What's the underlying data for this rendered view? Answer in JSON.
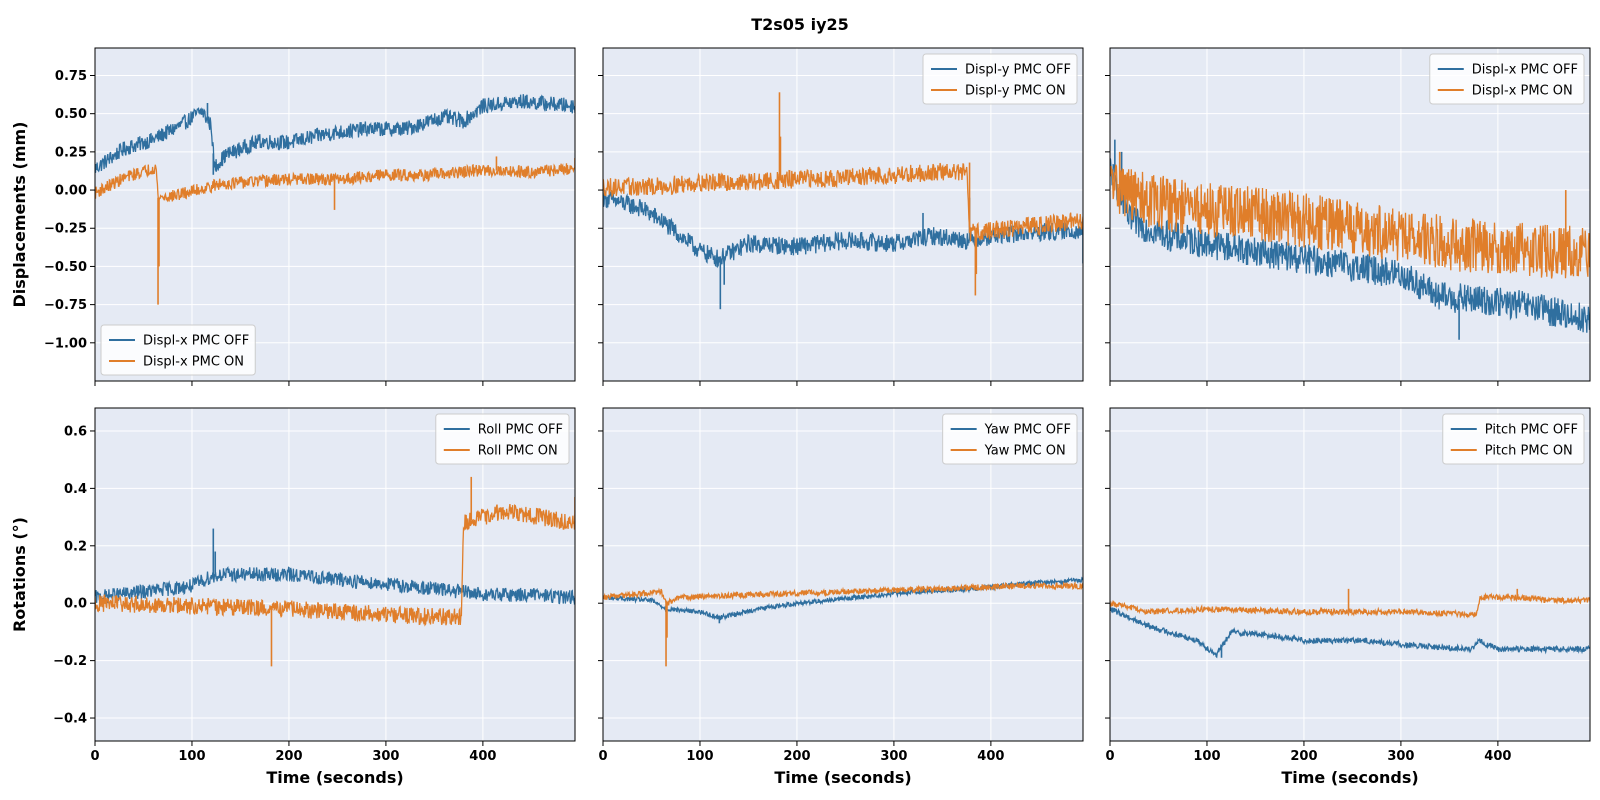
{
  "figure": {
    "title": "T2s05  iy25"
  },
  "colors": {
    "off": "#2f6f9f",
    "on": "#e07e2a",
    "panel_bg": "#e5eaf4",
    "grid": "#ffffff"
  },
  "chart_data": [
    {
      "type": "line",
      "id": "p00",
      "row": 0,
      "col": 0,
      "ylabel": "Displacements (mm)",
      "xlabel": "",
      "xlim": [
        0,
        495
      ],
      "ylim": [
        -1.25,
        0.93
      ],
      "xticks": [
        0,
        100,
        200,
        300,
        400
      ],
      "yticks": [
        0.75,
        0.5,
        0.25,
        0.0,
        -0.25,
        -0.5,
        -0.75,
        -1.0
      ],
      "ytick_labels": [
        "0.75",
        "0.50",
        "0.25",
        "0.00",
        "−0.25",
        "−0.50",
        "−0.75",
        "−1.00"
      ],
      "legend_loc": "lower-left",
      "series": [
        {
          "name": "Displ-x PMC OFF",
          "color": "#2f6f9f",
          "noise": 0.05,
          "points": [
            [
              0,
              0.14
            ],
            [
              30,
              0.27
            ],
            [
              60,
              0.33
            ],
            [
              90,
              0.43
            ],
            [
              110,
              0.52
            ],
            [
              120,
              0.42
            ],
            [
              123,
              0.15
            ],
            [
              135,
              0.23
            ],
            [
              170,
              0.32
            ],
            [
              200,
              0.31
            ],
            [
              240,
              0.37
            ],
            [
              280,
              0.4
            ],
            [
              320,
              0.4
            ],
            [
              360,
              0.48
            ],
            [
              380,
              0.45
            ],
            [
              400,
              0.55
            ],
            [
              440,
              0.58
            ],
            [
              495,
              0.55
            ]
          ],
          "spikes": [
            [
              116,
              0.57
            ],
            [
              125,
              0.12
            ],
            [
              122,
              0.1
            ]
          ]
        },
        {
          "name": "Displ-x PMC ON",
          "color": "#e07e2a",
          "noise": 0.04,
          "points": [
            [
              0,
              -0.02
            ],
            [
              30,
              0.08
            ],
            [
              63,
              0.15
            ],
            [
              65,
              -0.05
            ],
            [
              80,
              -0.04
            ],
            [
              130,
              0.04
            ],
            [
              200,
              0.07
            ],
            [
              250,
              0.07
            ],
            [
              300,
              0.1
            ],
            [
              350,
              0.1
            ],
            [
              400,
              0.13
            ],
            [
              450,
              0.12
            ],
            [
              495,
              0.14
            ]
          ],
          "spikes": [
            [
              65,
              -0.75
            ],
            [
              66,
              -0.5
            ],
            [
              247,
              -0.13
            ],
            [
              414,
              0.22
            ],
            [
              495,
              0.21
            ]
          ]
        }
      ]
    },
    {
      "type": "line",
      "id": "p01",
      "row": 0,
      "col": 1,
      "ylabel": "",
      "xlabel": "",
      "xlim": [
        0,
        495
      ],
      "ylim": [
        -1.25,
        0.93
      ],
      "xticks": [
        0,
        100,
        200,
        300,
        400
      ],
      "yticks": [
        0.75,
        0.5,
        0.25,
        0.0,
        -0.25,
        -0.5,
        -0.75,
        -1.0
      ],
      "ytick_labels": [],
      "legend_loc": "upper-right",
      "series": [
        {
          "name": "Displ-y PMC OFF",
          "color": "#2f6f9f",
          "noise": 0.06,
          "points": [
            [
              0,
              -0.05
            ],
            [
              40,
              -0.12
            ],
            [
              60,
              -0.2
            ],
            [
              80,
              -0.3
            ],
            [
              100,
              -0.4
            ],
            [
              120,
              -0.45
            ],
            [
              150,
              -0.35
            ],
            [
              200,
              -0.37
            ],
            [
              250,
              -0.33
            ],
            [
              300,
              -0.35
            ],
            [
              340,
              -0.3
            ],
            [
              378,
              -0.33
            ],
            [
              400,
              -0.3
            ],
            [
              440,
              -0.28
            ],
            [
              495,
              -0.26
            ]
          ],
          "spikes": [
            [
              121,
              -0.78
            ],
            [
              125,
              -0.62
            ],
            [
              330,
              -0.15
            ],
            [
              378,
              -0.05
            ],
            [
              495,
              -0.48
            ]
          ]
        },
        {
          "name": "Displ-y PMC ON",
          "color": "#e07e2a",
          "noise": 0.06,
          "points": [
            [
              0,
              0.02
            ],
            [
              50,
              0.02
            ],
            [
              100,
              0.05
            ],
            [
              150,
              0.05
            ],
            [
              200,
              0.07
            ],
            [
              250,
              0.08
            ],
            [
              300,
              0.1
            ],
            [
              350,
              0.12
            ],
            [
              375,
              0.12
            ],
            [
              378,
              -0.28
            ],
            [
              420,
              -0.25
            ],
            [
              460,
              -0.22
            ],
            [
              495,
              -0.2
            ]
          ],
          "spikes": [
            [
              182,
              0.64
            ],
            [
              183,
              0.35
            ],
            [
              384,
              -0.69
            ],
            [
              385,
              -0.55
            ],
            [
              378,
              0.18
            ]
          ]
        }
      ]
    },
    {
      "type": "line",
      "id": "p02",
      "row": 0,
      "col": 2,
      "ylabel": "",
      "xlabel": "",
      "xlim": [
        0,
        495
      ],
      "ylim": [
        -1.25,
        0.93
      ],
      "xticks": [
        0,
        100,
        200,
        300,
        400
      ],
      "yticks": [
        0.75,
        0.5,
        0.25,
        0.0,
        -0.25,
        -0.5,
        -0.75,
        -1.0
      ],
      "ytick_labels": [],
      "legend_loc": "upper-right",
      "series": [
        {
          "name": "Displ-x PMC OFF",
          "color": "#2f6f9f",
          "noise": 0.1,
          "points": [
            [
              0,
              0.15
            ],
            [
              20,
              -0.2
            ],
            [
              60,
              -0.3
            ],
            [
              100,
              -0.35
            ],
            [
              150,
              -0.4
            ],
            [
              200,
              -0.45
            ],
            [
              250,
              -0.5
            ],
            [
              300,
              -0.55
            ],
            [
              340,
              -0.7
            ],
            [
              380,
              -0.72
            ],
            [
              420,
              -0.75
            ],
            [
              460,
              -0.8
            ],
            [
              495,
              -0.85
            ]
          ],
          "spikes": [
            [
              5,
              0.33
            ],
            [
              12,
              0.25
            ],
            [
              360,
              -0.98
            ]
          ]
        },
        {
          "name": "Displ-x PMC ON",
          "color": "#e07e2a",
          "noise": 0.18,
          "points": [
            [
              0,
              0.05
            ],
            [
              30,
              -0.05
            ],
            [
              80,
              -0.12
            ],
            [
              150,
              -0.15
            ],
            [
              200,
              -0.2
            ],
            [
              260,
              -0.25
            ],
            [
              300,
              -0.3
            ],
            [
              350,
              -0.35
            ],
            [
              400,
              -0.38
            ],
            [
              450,
              -0.4
            ],
            [
              495,
              -0.42
            ]
          ],
          "spikes": [
            [
              10,
              0.25
            ],
            [
              470,
              0.0
            ]
          ]
        }
      ]
    },
    {
      "type": "line",
      "id": "p10",
      "row": 1,
      "col": 0,
      "ylabel": "Rotations (°)",
      "xlabel": "Time (seconds)",
      "xlim": [
        0,
        495
      ],
      "ylim": [
        -0.48,
        0.68
      ],
      "xticks": [
        0,
        100,
        200,
        300,
        400
      ],
      "xtick_labels": [
        "0",
        "100",
        "200",
        "300",
        "400"
      ],
      "yticks": [
        0.6,
        0.4,
        0.2,
        0.0,
        -0.2,
        -0.4
      ],
      "ytick_labels": [
        "0.6",
        "0.4",
        "0.2",
        "0.0",
        "−0.2",
        "−0.4"
      ],
      "legend_loc": "upper-right",
      "series": [
        {
          "name": "Roll PMC OFF",
          "color": "#2f6f9f",
          "noise": 0.025,
          "points": [
            [
              0,
              0.02
            ],
            [
              50,
              0.04
            ],
            [
              100,
              0.06
            ],
            [
              118,
              0.09
            ],
            [
              130,
              0.1
            ],
            [
              200,
              0.1
            ],
            [
              260,
              0.08
            ],
            [
              320,
              0.06
            ],
            [
              378,
              0.04
            ],
            [
              400,
              0.03
            ],
            [
              450,
              0.03
            ],
            [
              495,
              0.02
            ]
          ],
          "spikes": [
            [
              122,
              0.26
            ],
            [
              124,
              0.18
            ]
          ]
        },
        {
          "name": "Roll PMC ON",
          "color": "#e07e2a",
          "noise": 0.03,
          "points": [
            [
              0,
              0.0
            ],
            [
              100,
              -0.01
            ],
            [
              200,
              -0.02
            ],
            [
              300,
              -0.04
            ],
            [
              378,
              -0.05
            ],
            [
              380,
              0.28
            ],
            [
              420,
              0.32
            ],
            [
              460,
              0.3
            ],
            [
              495,
              0.28
            ]
          ],
          "spikes": [
            [
              182,
              -0.22
            ],
            [
              388,
              0.44
            ],
            [
              495,
              0.37
            ]
          ]
        }
      ]
    },
    {
      "type": "line",
      "id": "p11",
      "row": 1,
      "col": 1,
      "ylabel": "",
      "xlabel": "Time (seconds)",
      "xlim": [
        0,
        495
      ],
      "ylim": [
        -0.48,
        0.68
      ],
      "xticks": [
        0,
        100,
        200,
        300,
        400
      ],
      "xtick_labels": [
        "0",
        "100",
        "200",
        "300",
        "400"
      ],
      "yticks": [
        0.6,
        0.4,
        0.2,
        0.0,
        -0.2,
        -0.4
      ],
      "ytick_labels": [],
      "legend_loc": "upper-right",
      "series": [
        {
          "name": "Yaw PMC OFF",
          "color": "#2f6f9f",
          "noise": 0.008,
          "points": [
            [
              0,
              0.02
            ],
            [
              50,
              0.01
            ],
            [
              65,
              -0.02
            ],
            [
              100,
              -0.03
            ],
            [
              120,
              -0.05
            ],
            [
              160,
              -0.02
            ],
            [
              200,
              0.0
            ],
            [
              260,
              0.02
            ],
            [
              320,
              0.04
            ],
            [
              380,
              0.05
            ],
            [
              440,
              0.07
            ],
            [
              495,
              0.08
            ]
          ],
          "spikes": [
            [
              120,
              -0.07
            ]
          ]
        },
        {
          "name": "Yaw PMC ON",
          "color": "#e07e2a",
          "noise": 0.01,
          "points": [
            [
              0,
              0.02
            ],
            [
              60,
              0.04
            ],
            [
              66,
              0.0
            ],
            [
              80,
              0.02
            ],
            [
              150,
              0.03
            ],
            [
              250,
              0.04
            ],
            [
              350,
              0.05
            ],
            [
              420,
              0.06
            ],
            [
              495,
              0.06
            ]
          ],
          "spikes": [
            [
              65,
              -0.22
            ],
            [
              66,
              -0.12
            ]
          ]
        }
      ]
    },
    {
      "type": "line",
      "id": "p12",
      "row": 1,
      "col": 2,
      "ylabel": "",
      "xlabel": "Time (seconds)",
      "xlim": [
        0,
        495
      ],
      "ylim": [
        -0.48,
        0.68
      ],
      "xticks": [
        0,
        100,
        200,
        300,
        400
      ],
      "xtick_labels": [
        "0",
        "100",
        "200",
        "300",
        "400"
      ],
      "yticks": [
        0.6,
        0.4,
        0.2,
        0.0,
        -0.2,
        -0.4
      ],
      "ytick_labels": [],
      "legend_loc": "upper-right",
      "series": [
        {
          "name": "Pitch PMC OFF",
          "color": "#2f6f9f",
          "noise": 0.01,
          "points": [
            [
              0,
              -0.02
            ],
            [
              20,
              -0.05
            ],
            [
              40,
              -0.08
            ],
            [
              60,
              -0.1
            ],
            [
              90,
              -0.13
            ],
            [
              110,
              -0.18
            ],
            [
              125,
              -0.1
            ],
            [
              160,
              -0.11
            ],
            [
              200,
              -0.13
            ],
            [
              260,
              -0.13
            ],
            [
              320,
              -0.15
            ],
            [
              375,
              -0.16
            ],
            [
              380,
              -0.13
            ],
            [
              400,
              -0.16
            ],
            [
              450,
              -0.16
            ],
            [
              495,
              -0.16
            ]
          ],
          "spikes": [
            [
              115,
              -0.19
            ]
          ]
        },
        {
          "name": "Pitch PMC ON",
          "color": "#e07e2a",
          "noise": 0.01,
          "points": [
            [
              0,
              0.0
            ],
            [
              40,
              -0.03
            ],
            [
              100,
              -0.02
            ],
            [
              200,
              -0.03
            ],
            [
              300,
              -0.03
            ],
            [
              378,
              -0.04
            ],
            [
              382,
              0.02
            ],
            [
              420,
              0.02
            ],
            [
              460,
              0.01
            ],
            [
              495,
              0.01
            ]
          ],
          "spikes": [
            [
              246,
              0.05
            ],
            [
              420,
              0.05
            ]
          ]
        }
      ]
    }
  ]
}
